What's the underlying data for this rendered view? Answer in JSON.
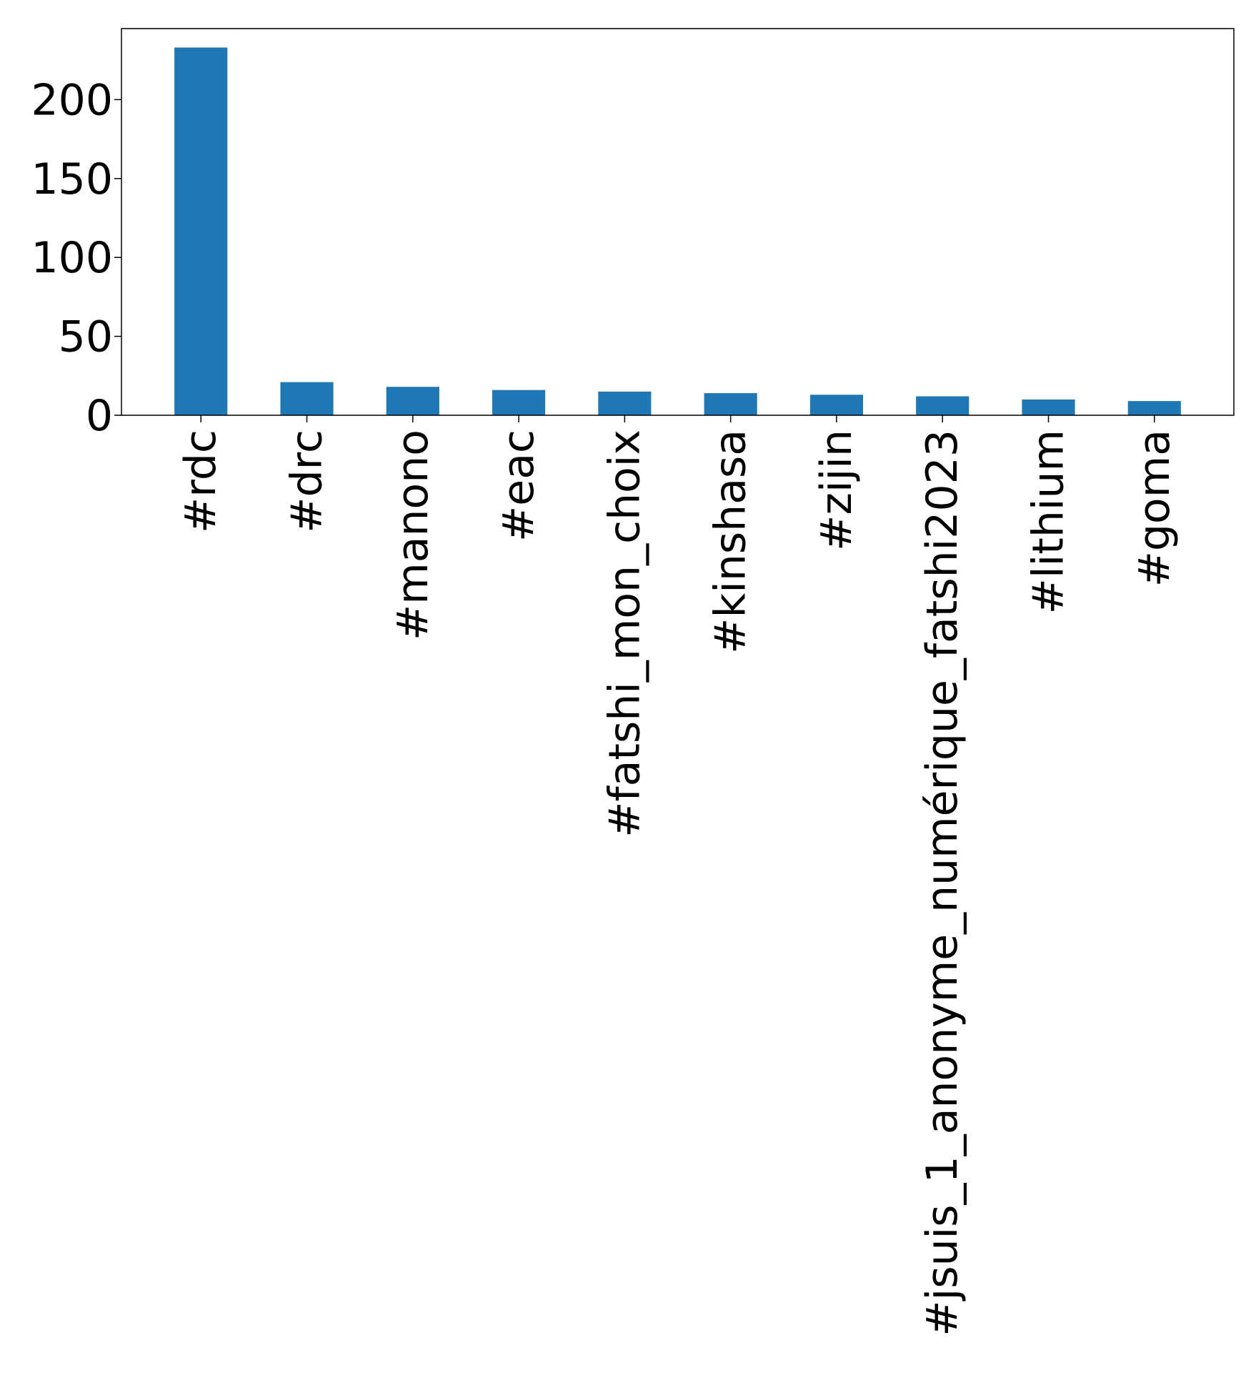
{
  "chart_data": {
    "type": "bar",
    "title": "",
    "xlabel": "",
    "ylabel": "",
    "categories": [
      "#rdc",
      "#drc",
      "#manono",
      "#eac",
      "#fatshi_mon_choix",
      "#kinshasa",
      "#zijin",
      "#jsuis_1_anonyme_numérique_fatshi2023",
      "#lithium",
      "#goma"
    ],
    "values": [
      233,
      21,
      18,
      16,
      15,
      14,
      13,
      12,
      10,
      9
    ],
    "ylim": [
      0,
      245
    ],
    "yticks": [
      0,
      50,
      100,
      150,
      200
    ],
    "grid": false,
    "legend": "none",
    "bar_color": "#1f77b4"
  }
}
